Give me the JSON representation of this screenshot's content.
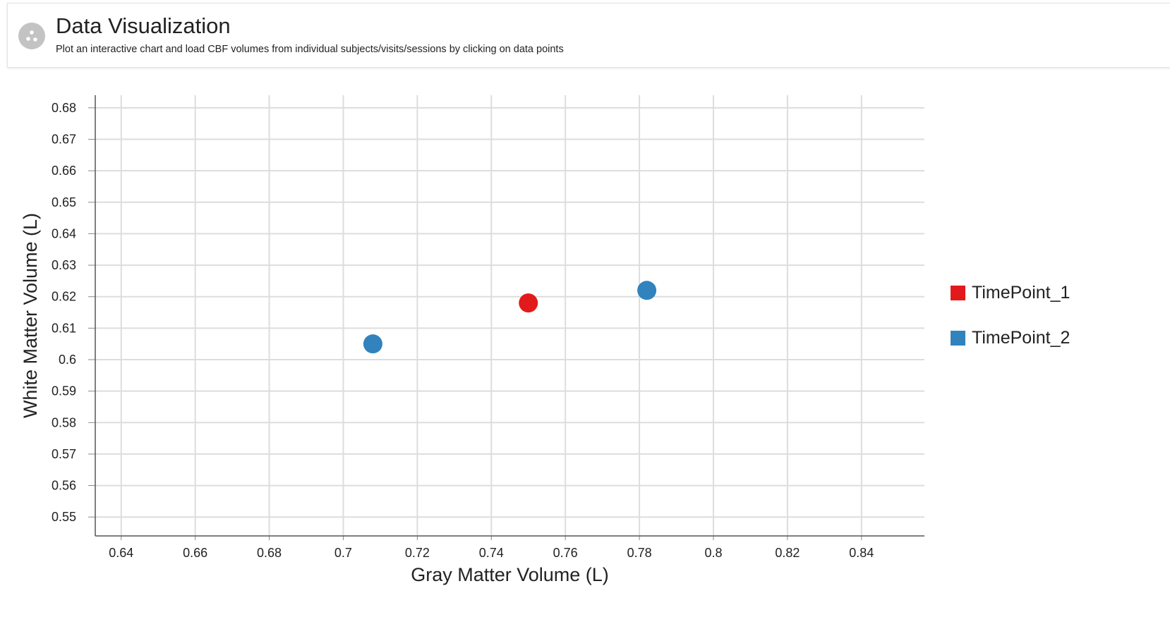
{
  "header": {
    "title": "Data Visualization",
    "subtitle": "Plot an interactive chart and load CBF volumes from individual subjects/visits/sessions by clicking on data points",
    "icon": "scatter-plot-icon"
  },
  "chart_data": {
    "type": "scatter",
    "xlabel": "Gray Matter Volume (L)",
    "ylabel": "White Matter Volume (L)",
    "xlim": [
      0.633,
      0.857
    ],
    "ylim": [
      0.544,
      0.684
    ],
    "x_ticks": [
      "0.64",
      "0.66",
      "0.68",
      "0.7",
      "0.72",
      "0.74",
      "0.76",
      "0.78",
      "0.8",
      "0.82",
      "0.84"
    ],
    "y_ticks": [
      "0.55",
      "0.56",
      "0.57",
      "0.58",
      "0.59",
      "0.6",
      "0.61",
      "0.62",
      "0.63",
      "0.64",
      "0.65",
      "0.66",
      "0.67",
      "0.68"
    ],
    "grid": true,
    "legend_position": "right",
    "series": [
      {
        "name": "TimePoint_1",
        "color": "#e31a1c",
        "points": [
          {
            "x": 0.75,
            "y": 0.618
          }
        ]
      },
      {
        "name": "TimePoint_2",
        "color": "#3182bd",
        "points": [
          {
            "x": 0.708,
            "y": 0.605
          },
          {
            "x": 0.782,
            "y": 0.622
          }
        ]
      }
    ]
  }
}
